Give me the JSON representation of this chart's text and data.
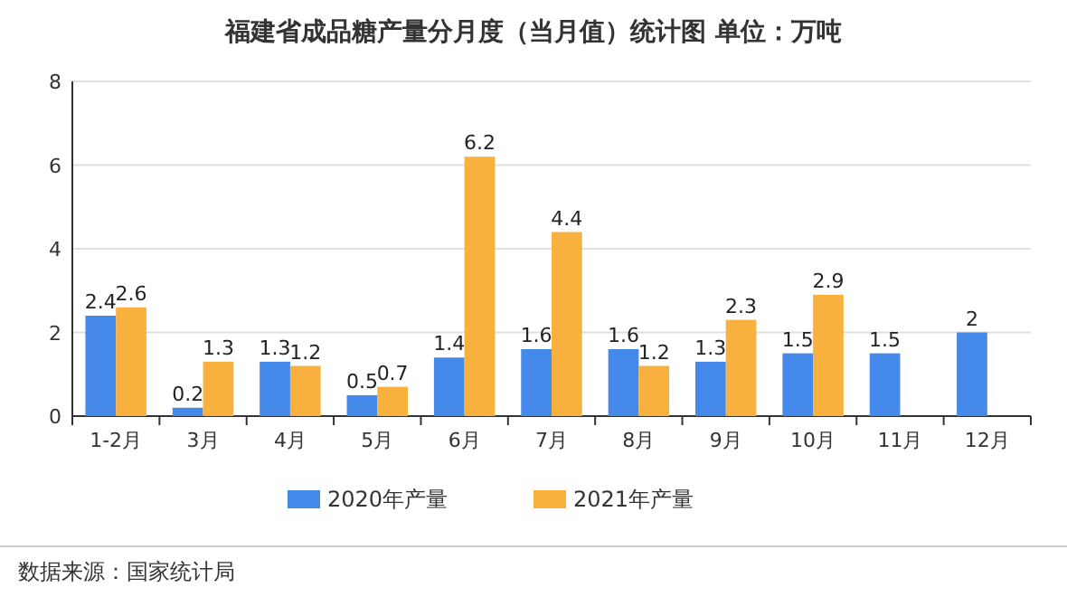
{
  "chart_data": {
    "type": "bar",
    "title": "福建省成品糖产量分月度（当月值）统计图 单位：万吨",
    "categories": [
      "1-2月",
      "3月",
      "4月",
      "5月",
      "6月",
      "7月",
      "8月",
      "9月",
      "10月",
      "11月",
      "12月"
    ],
    "series": [
      {
        "name": "2020年产量",
        "color": "#4589ea",
        "values": [
          2.4,
          0.2,
          1.3,
          0.5,
          1.4,
          1.6,
          1.6,
          1.3,
          1.5,
          1.5,
          2
        ]
      },
      {
        "name": "2021年产量",
        "color": "#f8b13f",
        "values": [
          2.6,
          1.3,
          1.2,
          0.7,
          6.2,
          4.4,
          1.2,
          2.3,
          2.9,
          null,
          null
        ]
      }
    ],
    "ylim": [
      0,
      8
    ],
    "yticks": [
      0,
      2,
      4,
      6,
      8
    ],
    "grid": "y",
    "legend": "bottom",
    "data_labels": true,
    "annotations": [
      "数据来源：国家统计局"
    ]
  }
}
